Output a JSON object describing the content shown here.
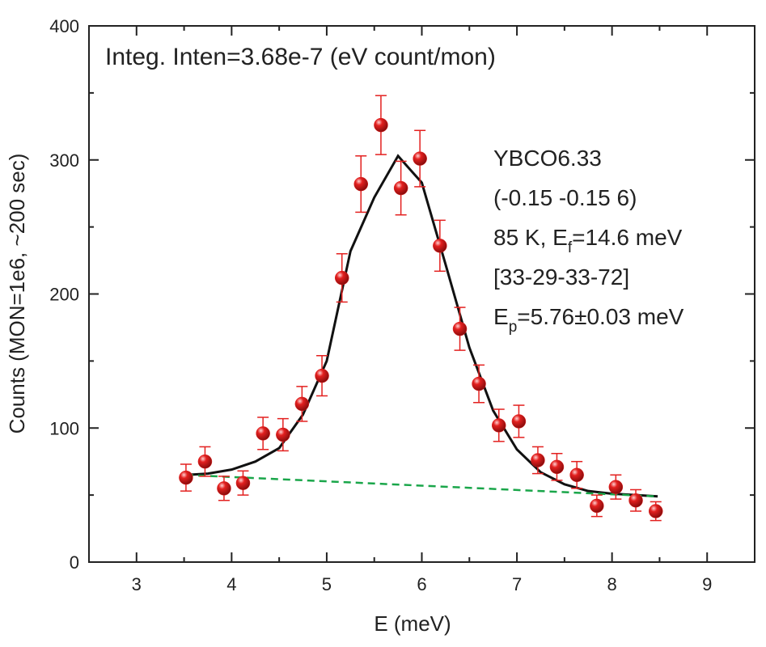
{
  "chart_data": {
    "type": "scatter",
    "title": "Integ. Inten=3.68e-7 (eV count/mon)",
    "annotations": [
      [
        {
          "text": "YBCO6.33"
        }
      ],
      [
        {
          "text": "(-0.15 -0.15 6)"
        }
      ],
      [
        {
          "text": "85 K, E"
        },
        {
          "text": "f",
          "sub": true
        },
        {
          "text": "=14.6 meV"
        }
      ],
      [
        {
          "text": "[33-29-33-72]"
        }
      ],
      [
        {
          "text": "E"
        },
        {
          "text": "p",
          "sub": true
        },
        {
          "text": "=5.76±0.03 meV"
        }
      ]
    ],
    "x_label": "E (meV)",
    "y_label": "Counts (MON=1e6, ~200 sec)",
    "xlim": [
      2.5,
      9.5
    ],
    "xticks": [
      3,
      4,
      5,
      6,
      7,
      8,
      9
    ],
    "ylim": [
      0,
      400
    ],
    "yticks": [
      0,
      100,
      200,
      300,
      400
    ],
    "series": [
      {
        "kind": "points",
        "color": "#e3201f",
        "x": [
          3.52,
          3.72,
          3.92,
          4.12,
          4.33,
          4.54,
          4.74,
          4.95,
          5.16,
          5.36,
          5.57,
          5.78,
          5.98,
          6.19,
          6.4,
          6.6,
          6.81,
          7.02,
          7.22,
          7.42,
          7.63,
          7.84,
          8.04,
          8.25,
          8.46
        ],
        "values": [
          63,
          75,
          55,
          59,
          96,
          95,
          118,
          139,
          212,
          282,
          326,
          279,
          301,
          236,
          174,
          133,
          102,
          105,
          76,
          71,
          65,
          42,
          56,
          46,
          38
        ],
        "error": [
          10,
          11,
          9,
          9,
          12,
          12,
          13,
          15,
          18,
          21,
          22,
          20,
          21,
          19,
          16,
          14,
          12,
          12,
          10,
          10,
          10,
          8,
          9,
          8,
          7
        ]
      },
      {
        "kind": "line",
        "color": "#111111",
        "dash": false,
        "x": [
          3.52,
          3.75,
          4.0,
          4.25,
          4.5,
          4.75,
          5.0,
          5.25,
          5.5,
          5.75,
          6.0,
          6.25,
          6.5,
          6.75,
          7.0,
          7.25,
          7.5,
          7.75,
          8.0,
          8.25,
          8.48
        ],
        "values": [
          65,
          66,
          69,
          75,
          85,
          110,
          150,
          232,
          272,
          303,
          283,
          222,
          160,
          113,
          84,
          67,
          58,
          53,
          51,
          50,
          49
        ]
      },
      {
        "kind": "line",
        "color": "#1aa64a",
        "dash": true,
        "x": [
          3.52,
          8.48
        ],
        "values": [
          65,
          49
        ]
      }
    ]
  }
}
